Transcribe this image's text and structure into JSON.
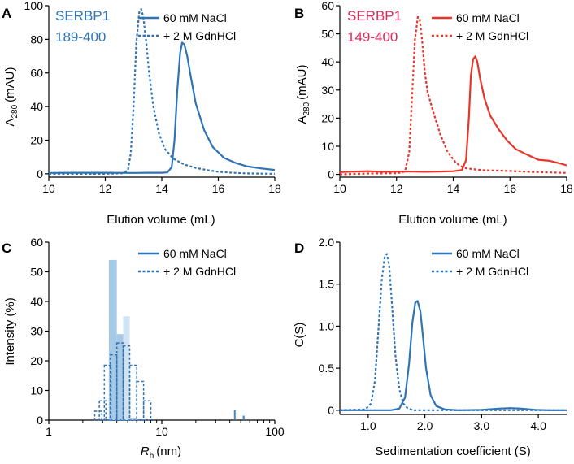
{
  "colors": {
    "blue": "#2f74b5",
    "red": "#e8352a",
    "magenta": "#e0285a",
    "bar_dark": "#a6c9e6",
    "bar_light": "#cfe3f3",
    "axis": "#000000"
  },
  "chart_data": [
    {
      "id": "A",
      "type": "line",
      "panel_letter": "A",
      "protein_name": "SERBP1",
      "protein_range": "189-400",
      "xlabel": "Elution volume (mL)",
      "ylabel_main": "A",
      "ylabel_sub": "280",
      "ylabel_unit": "(mAU)",
      "xlim": [
        10,
        18
      ],
      "ylim": [
        -2,
        100
      ],
      "xticks": [
        "10",
        "12",
        "14",
        "16",
        "18"
      ],
      "yticks": [
        "0",
        "20",
        "40",
        "60",
        "80",
        "100"
      ],
      "legend": [
        "60 mM NaCl",
        "+ 2 M GdnHCl"
      ],
      "series": [
        {
          "name": "60 mM NaCl",
          "style": "solid",
          "x": [
            10,
            11,
            12,
            13,
            13.5,
            14,
            14.2,
            14.35,
            14.45,
            14.55,
            14.65,
            14.72,
            14.8,
            14.9,
            15.0,
            15.2,
            15.5,
            15.8,
            16.2,
            16.6,
            17.0,
            17.5,
            18
          ],
          "y": [
            0.5,
            0.6,
            0.6,
            0.5,
            0.6,
            0.6,
            0.8,
            4,
            20,
            50,
            72,
            78,
            77,
            70,
            60,
            42,
            26,
            16,
            9.5,
            6.5,
            4.5,
            3.2,
            2.3
          ]
        },
        {
          "name": "+ 2 M GdnHCl",
          "style": "dashed",
          "x": [
            10,
            12,
            12.6,
            12.8,
            12.9,
            13.0,
            13.1,
            13.2,
            13.27,
            13.35,
            13.45,
            13.55,
            13.7,
            13.9,
            14.1,
            14.4,
            14.8,
            15.2,
            15.6,
            16.0,
            16.5,
            17,
            18
          ],
          "y": [
            0,
            0,
            0.3,
            2,
            12,
            40,
            78,
            96,
            98,
            93,
            78,
            60,
            40,
            24,
            15,
            9,
            5.5,
            3.5,
            2.2,
            1.2,
            0.6,
            0.2,
            0
          ]
        }
      ]
    },
    {
      "id": "B",
      "type": "line",
      "panel_letter": "B",
      "protein_name": "SERBP1",
      "protein_range": "149-400",
      "xlabel": "Elution volume (mL)",
      "ylabel_main": "A",
      "ylabel_sub": "280",
      "ylabel_unit": "(mAU)",
      "xlim": [
        10,
        18
      ],
      "ylim": [
        -1,
        60
      ],
      "xticks": [
        "10",
        "12",
        "14",
        "16",
        "18"
      ],
      "yticks": [
        "0",
        "10",
        "20",
        "30",
        "40",
        "50",
        "60"
      ],
      "legend": [
        "60 mM NaCl",
        "+ 2 M GdnHCl"
      ],
      "series": [
        {
          "name": "60 mM NaCl",
          "style": "solid",
          "x": [
            10,
            10.5,
            11,
            11.5,
            12,
            12.5,
            13,
            13.5,
            14,
            14.3,
            14.45,
            14.55,
            14.62,
            14.7,
            14.78,
            14.85,
            14.95,
            15.1,
            15.3,
            15.6,
            15.9,
            16.2,
            16.6,
            17.0,
            17.4,
            17.8,
            18
          ],
          "y": [
            0.8,
            1.0,
            1.1,
            0.9,
            1.0,
            1.0,
            0.9,
            1.0,
            1.1,
            1.5,
            5,
            20,
            35,
            41,
            42,
            40,
            34,
            27,
            21,
            16,
            12,
            9,
            7,
            5.2,
            4.8,
            3.8,
            3.2
          ]
        },
        {
          "name": "+ 2 M GdnHCl",
          "style": "dashed",
          "x": [
            10,
            11,
            12,
            12.3,
            12.45,
            12.55,
            12.65,
            12.75,
            12.82,
            12.9,
            13.0,
            13.1,
            13.3,
            13.55,
            13.8,
            14.1,
            14.4,
            15,
            16,
            17,
            18
          ],
          "y": [
            0,
            0.3,
            0.4,
            1,
            8,
            28,
            48,
            56,
            55,
            48,
            36,
            29,
            22,
            14,
            8,
            4,
            2.2,
            1.5,
            1.2,
            0.8,
            0.5
          ]
        }
      ]
    },
    {
      "id": "C",
      "type": "bar",
      "panel_letter": "C",
      "xscale": "log",
      "xlabel_main": "R",
      "xlabel_sub": "h",
      "xlabel_unit": "(nm)",
      "ylabel": "Intensity (%)",
      "xlim": [
        1,
        100
      ],
      "ylim": [
        0,
        60
      ],
      "xticks": [
        "1",
        "10",
        "100"
      ],
      "yticks": [
        "0",
        "10",
        "20",
        "30",
        "40",
        "50",
        "60"
      ],
      "legend": [
        "60 mM NaCl",
        "+ 2 M GdnHCl"
      ],
      "series": [
        {
          "name": "60 mM NaCl",
          "style": "filled",
          "bins": [
            [
              3.4,
              4.0,
              54
            ],
            [
              4.0,
              4.55,
              29
            ],
            [
              4.55,
              5.2,
              35
            ],
            [
              5.2,
              6.0,
              0.5
            ],
            [
              43.5,
              45.0,
              3.3
            ],
            [
              52,
              54,
              1.5
            ]
          ]
        },
        {
          "name": "+ 2 M GdnHCl",
          "style": "dashed-outline",
          "bins": [
            [
              2.55,
              2.95,
              3
            ],
            [
              2.8,
              3.2,
              6.5
            ],
            [
              3.1,
              3.55,
              18.5
            ],
            [
              3.5,
              4.0,
              22
            ],
            [
              4.0,
              4.55,
              26
            ],
            [
              4.55,
              5.2,
              25
            ],
            [
              5.2,
              6.0,
              18.5
            ],
            [
              6.0,
              6.9,
              13
            ],
            [
              6.9,
              8.0,
              6.5
            ]
          ]
        }
      ]
    },
    {
      "id": "D",
      "type": "line",
      "panel_letter": "D",
      "xlabel": "Sedimentation coefficient (S)",
      "ylabel": "C(S)",
      "xlim": [
        0.5,
        4.5
      ],
      "ylim": [
        -0.05,
        2.0
      ],
      "xticks": [
        "1.0",
        "2.0",
        "3.0",
        "4.0"
      ],
      "yticks": [
        "0",
        "0.5",
        "1.0",
        "1.5",
        "2.0"
      ],
      "legend": [
        "60 mM NaCl",
        "+ 2 M GdnHCl"
      ],
      "series": [
        {
          "name": "60 mM NaCl",
          "style": "solid",
          "x": [
            0.5,
            1.4,
            1.55,
            1.65,
            1.72,
            1.78,
            1.83,
            1.87,
            1.92,
            1.97,
            2.02,
            2.1,
            2.2,
            2.35,
            2.6,
            3.0,
            3.3,
            3.5,
            3.7,
            3.95,
            4.2,
            4.5
          ],
          "y": [
            0,
            0,
            0.02,
            0.15,
            0.55,
            1.05,
            1.28,
            1.3,
            1.18,
            0.85,
            0.5,
            0.18,
            0.05,
            0.01,
            0,
            0.005,
            0.02,
            0.025,
            0.02,
            0.005,
            0,
            0
          ]
        },
        {
          "name": "+ 2 M GdnHCl",
          "style": "dashed",
          "x": [
            0.5,
            0.95,
            1.05,
            1.12,
            1.18,
            1.24,
            1.29,
            1.33,
            1.37,
            1.42,
            1.48,
            1.55,
            1.62,
            1.7,
            1.8,
            2.2,
            3.0,
            4.5
          ],
          "y": [
            0,
            0.01,
            0.08,
            0.35,
            0.95,
            1.55,
            1.82,
            1.86,
            1.72,
            1.25,
            0.65,
            0.25,
            0.08,
            0.02,
            0,
            0,
            0,
            0
          ]
        }
      ]
    }
  ]
}
